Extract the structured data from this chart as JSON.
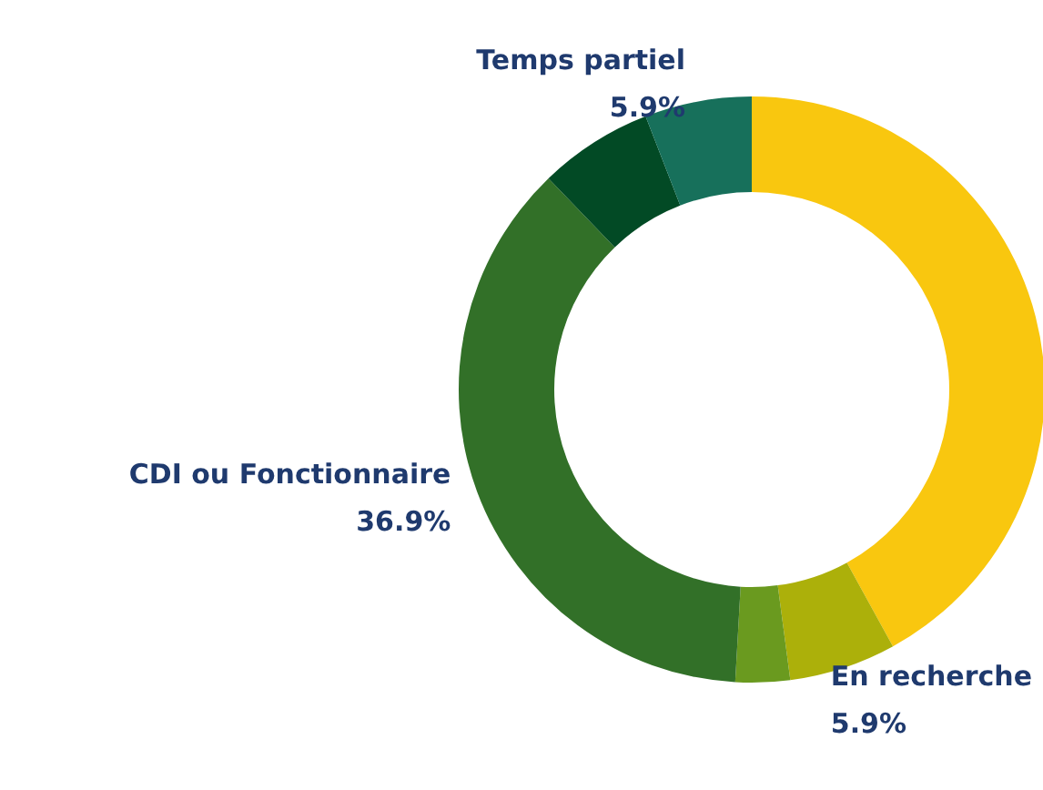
{
  "chart_data": {
    "type": "donut",
    "categories": [
      null,
      "En recherche",
      null,
      "CDI ou Fonctionnaire",
      null,
      "Temps partiel"
    ],
    "values": [
      42.0,
      5.9,
      3.0,
      36.9,
      6.3,
      5.9
    ],
    "colors": [
      "#f9c70f",
      "#acb00a",
      "#6a9a1f",
      "#327028",
      "#024a25",
      "#17705b"
    ],
    "value_labels": [
      null,
      "5.9%",
      null,
      "36.9%",
      null,
      "5.9%"
    ]
  }
}
